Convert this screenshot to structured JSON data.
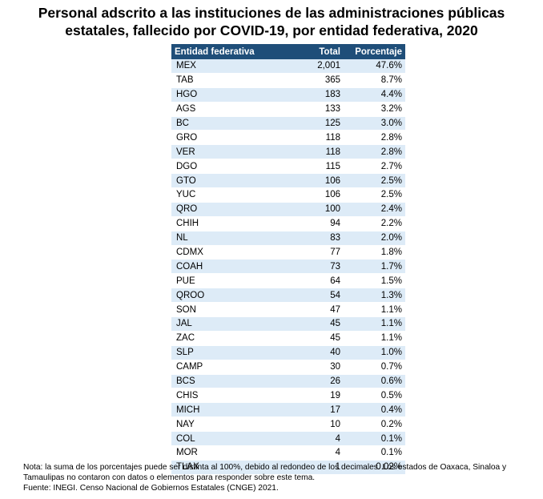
{
  "title": {
    "line1": "Personal adscrito a las instituciones de las administraciones públicas",
    "line2": "estatales, fallecido por COVID-19, por entidad federativa, 2020"
  },
  "table": {
    "headers": {
      "entity": "Entidad federativa",
      "total": "Total",
      "percent": "Porcentaje"
    },
    "rows": [
      {
        "entity": "MEX",
        "total": "2,001",
        "percent": "47.6%"
      },
      {
        "entity": "TAB",
        "total": "365",
        "percent": "8.7%"
      },
      {
        "entity": "HGO",
        "total": "183",
        "percent": "4.4%"
      },
      {
        "entity": "AGS",
        "total": "133",
        "percent": "3.2%"
      },
      {
        "entity": "BC",
        "total": "125",
        "percent": "3.0%"
      },
      {
        "entity": "GRO",
        "total": "118",
        "percent": "2.8%"
      },
      {
        "entity": "VER",
        "total": "118",
        "percent": "2.8%"
      },
      {
        "entity": "DGO",
        "total": "115",
        "percent": "2.7%"
      },
      {
        "entity": "GTO",
        "total": "106",
        "percent": "2.5%"
      },
      {
        "entity": "YUC",
        "total": "106",
        "percent": "2.5%"
      },
      {
        "entity": "QRO",
        "total": "100",
        "percent": "2.4%"
      },
      {
        "entity": "CHIH",
        "total": "94",
        "percent": "2.2%"
      },
      {
        "entity": "NL",
        "total": "83",
        "percent": "2.0%"
      },
      {
        "entity": "CDMX",
        "total": "77",
        "percent": "1.8%"
      },
      {
        "entity": "COAH",
        "total": "73",
        "percent": "1.7%"
      },
      {
        "entity": "PUE",
        "total": "64",
        "percent": "1.5%"
      },
      {
        "entity": "QROO",
        "total": "54",
        "percent": "1.3%"
      },
      {
        "entity": "SON",
        "total": "47",
        "percent": "1.1%"
      },
      {
        "entity": "JAL",
        "total": "45",
        "percent": "1.1%"
      },
      {
        "entity": "ZAC",
        "total": "45",
        "percent": "1.1%"
      },
      {
        "entity": "SLP",
        "total": "40",
        "percent": "1.0%"
      },
      {
        "entity": "CAMP",
        "total": "30",
        "percent": "0.7%"
      },
      {
        "entity": "BCS",
        "total": "26",
        "percent": "0.6%"
      },
      {
        "entity": "CHIS",
        "total": "19",
        "percent": "0.5%"
      },
      {
        "entity": "MICH",
        "total": "17",
        "percent": "0.4%"
      },
      {
        "entity": "NAY",
        "total": "10",
        "percent": "0.2%"
      },
      {
        "entity": "COL",
        "total": "4",
        "percent": "0.1%"
      },
      {
        "entity": "MOR",
        "total": "4",
        "percent": "0.1%"
      },
      {
        "entity": "TLAX",
        "total": "1",
        "percent": "0.02%"
      }
    ]
  },
  "notes": {
    "note": "Nota: la suma de los porcentajes puede ser distinta al 100%, debido al redondeo de los decimales. Los estados de Oaxaca, Sinaloa y Tamaulipas no contaron con datos o elementos para responder sobre este tema.",
    "source": "Fuente: INEGI. Censo Nacional de Gobiernos Estatales (CNGE) 2021."
  },
  "colors": {
    "header_bg": "#1f4e79",
    "header_text": "#ffffff",
    "band_light": "#ddebf7",
    "band_white": "#ffffff"
  }
}
